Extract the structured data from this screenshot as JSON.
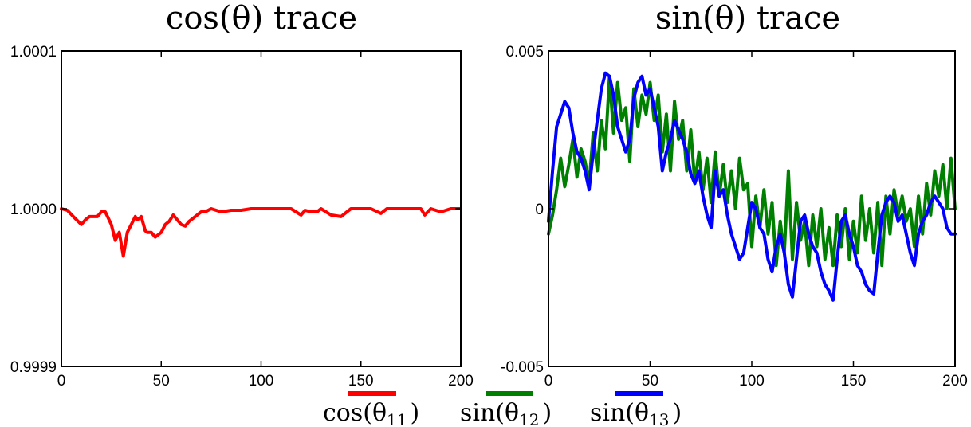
{
  "chart_data": [
    {
      "type": "line",
      "title": "cos(θ) trace",
      "xlabel": "",
      "ylabel": "",
      "xlim": [
        0,
        200
      ],
      "ylim": [
        0.9999,
        1.0001
      ],
      "x_ticks": [
        "0",
        "50",
        "100",
        "150",
        "200"
      ],
      "y_ticks": [
        "0.9999",
        "1.0000",
        "1.0001"
      ],
      "grid": false,
      "series": [
        {
          "name": "cos(θ11)",
          "color": "#ff0000",
          "x": [
            0,
            3,
            6,
            10,
            12,
            14,
            18,
            20,
            22,
            25,
            27,
            29,
            31,
            33,
            35,
            37,
            38,
            40,
            42,
            43,
            45,
            47,
            48,
            50,
            52,
            54,
            56,
            58,
            60,
            62,
            64,
            66,
            68,
            70,
            72,
            75,
            80,
            85,
            90,
            95,
            100,
            110,
            115,
            120,
            122,
            125,
            128,
            130,
            135,
            140,
            145,
            150,
            155,
            160,
            163,
            165,
            168,
            170,
            175,
            180,
            182,
            185,
            190,
            195,
            200
          ],
          "y": [
            1.0,
            0.999999,
            0.999995,
            0.99999,
            0.999993,
            0.999995,
            0.999995,
            0.999998,
            0.999998,
            0.99999,
            0.99998,
            0.999985,
            0.99997,
            0.999985,
            0.99999,
            0.999995,
            0.999993,
            0.999995,
            0.999986,
            0.999985,
            0.999985,
            0.999982,
            0.999983,
            0.999985,
            0.99999,
            0.999992,
            0.999996,
            0.999993,
            0.99999,
            0.999989,
            0.999992,
            0.999994,
            0.999996,
            0.999998,
            0.999998,
            1.0,
            0.999998,
            0.999999,
            0.999999,
            1.0,
            1.0,
            1.0,
            1.0,
            0.999996,
            0.999999,
            0.999998,
            0.999998,
            1.0,
            0.999996,
            0.999995,
            1.0,
            1.0,
            1.0,
            0.999997,
            1.0,
            1.0,
            1.0,
            1.0,
            1.0,
            1.0,
            0.999996,
            1.0,
            0.999998,
            1.0,
            1.0
          ]
        }
      ]
    },
    {
      "type": "line",
      "title": "sin(θ) trace",
      "xlabel": "",
      "ylabel": "",
      "xlim": [
        0,
        200
      ],
      "ylim": [
        -0.005,
        0.005
      ],
      "x_ticks": [
        "0",
        "50",
        "100",
        "150",
        "200"
      ],
      "y_ticks": [
        "-0.005",
        "0",
        "0.005"
      ],
      "grid": false,
      "series": [
        {
          "name": "sin(θ12)",
          "color": "#008000",
          "x": [
            0,
            2,
            4,
            6,
            8,
            10,
            12,
            14,
            16,
            18,
            20,
            22,
            24,
            26,
            28,
            30,
            32,
            34,
            36,
            38,
            40,
            42,
            44,
            46,
            48,
            50,
            52,
            54,
            56,
            58,
            60,
            62,
            64,
            66,
            68,
            70,
            72,
            74,
            76,
            78,
            80,
            82,
            84,
            86,
            88,
            90,
            92,
            94,
            96,
            98,
            100,
            102,
            104,
            106,
            108,
            110,
            112,
            114,
            116,
            118,
            120,
            122,
            124,
            126,
            128,
            130,
            132,
            134,
            136,
            138,
            140,
            142,
            144,
            146,
            148,
            150,
            152,
            154,
            156,
            158,
            160,
            162,
            164,
            166,
            168,
            170,
            172,
            174,
            176,
            178,
            180,
            182,
            184,
            186,
            188,
            190,
            192,
            194,
            196,
            198,
            200
          ],
          "y": [
            -0.0008,
            -0.0002,
            0.0006,
            0.0016,
            0.0007,
            0.0014,
            0.0022,
            0.001,
            0.0019,
            0.0015,
            0.0008,
            0.0024,
            0.0012,
            0.0028,
            0.0019,
            0.0042,
            0.0024,
            0.004,
            0.0028,
            0.0032,
            0.0015,
            0.0038,
            0.0026,
            0.0036,
            0.003,
            0.004,
            0.0028,
            0.0036,
            0.0018,
            0.003,
            0.0012,
            0.0034,
            0.0022,
            0.0028,
            0.0012,
            0.0025,
            0.0008,
            0.0018,
            0.0006,
            0.0016,
            0.0002,
            0.0018,
            0.0004,
            0.0014,
            0.0002,
            0.0012,
            0.0,
            0.0016,
            0.0006,
            0.0008,
            -0.0012,
            0.0004,
            -0.0006,
            0.0006,
            -0.0008,
            0.0002,
            -0.0018,
            -0.0004,
            -0.0014,
            0.0012,
            -0.0016,
            0.0002,
            -0.001,
            -0.0004,
            -0.0018,
            -0.0002,
            -0.0012,
            0.0,
            -0.0016,
            -0.0006,
            -0.0018,
            -0.0002,
            -0.0012,
            0.0,
            -0.0016,
            -0.0004,
            -0.0014,
            0.0004,
            -0.001,
            0.0,
            -0.0014,
            0.0002,
            -0.0018,
            0.0004,
            -0.0008,
            0.0006,
            -0.0002,
            0.0004,
            -0.0004,
            0.0,
            -0.0012,
            0.0004,
            -0.0008,
            0.0008,
            -0.0002,
            0.0012,
            0.0004,
            0.0014,
            0.0,
            0.0016,
            0.0
          ]
        },
        {
          "name": "sin(θ13)",
          "color": "#0000ff",
          "x": [
            0,
            2,
            4,
            6,
            8,
            10,
            12,
            14,
            16,
            18,
            20,
            22,
            24,
            26,
            28,
            30,
            32,
            34,
            36,
            38,
            40,
            42,
            44,
            46,
            48,
            50,
            52,
            54,
            56,
            58,
            60,
            62,
            64,
            66,
            68,
            70,
            72,
            74,
            76,
            78,
            80,
            82,
            84,
            86,
            88,
            90,
            92,
            94,
            96,
            98,
            100,
            102,
            104,
            106,
            108,
            110,
            112,
            114,
            116,
            118,
            120,
            122,
            124,
            126,
            128,
            130,
            132,
            134,
            136,
            138,
            140,
            142,
            144,
            146,
            148,
            150,
            152,
            154,
            156,
            158,
            160,
            162,
            164,
            166,
            168,
            170,
            172,
            174,
            176,
            178,
            180,
            182,
            184,
            186,
            188,
            190,
            192,
            194,
            196,
            198,
            200
          ],
          "y": [
            -0.0004,
            0.0012,
            0.0026,
            0.003,
            0.0034,
            0.0032,
            0.0024,
            0.0018,
            0.0016,
            0.0012,
            0.0006,
            0.0018,
            0.0028,
            0.0038,
            0.0043,
            0.0042,
            0.0036,
            0.0026,
            0.0022,
            0.0018,
            0.0022,
            0.0035,
            0.004,
            0.0042,
            0.0036,
            0.0038,
            0.0032,
            0.0026,
            0.0012,
            0.0018,
            0.0022,
            0.0028,
            0.0025,
            0.0022,
            0.0018,
            0.0011,
            0.0008,
            0.0012,
            0.0004,
            -0.0002,
            -0.0006,
            0.0012,
            0.0004,
            0.0006,
            -0.0002,
            -0.0008,
            -0.0012,
            -0.0016,
            -0.0014,
            -0.0006,
            0.0002,
            0.0,
            -0.0006,
            -0.0008,
            -0.0016,
            -0.002,
            -0.0012,
            -0.0008,
            -0.0014,
            -0.0024,
            -0.0028,
            -0.0016,
            -0.0004,
            -0.0002,
            -0.0008,
            -0.0012,
            -0.0014,
            -0.002,
            -0.0024,
            -0.0026,
            -0.0029,
            -0.0016,
            -0.0004,
            -0.0002,
            -0.0008,
            -0.0012,
            -0.0018,
            -0.002,
            -0.0024,
            -0.0026,
            -0.0027,
            -0.0014,
            -0.0002,
            0.0002,
            0.0004,
            0.0002,
            -0.0004,
            -0.0002,
            -0.0008,
            -0.0014,
            -0.0018,
            -0.0008,
            -0.0004,
            -0.0002,
            0.0002,
            0.0004,
            0.0002,
            0.0,
            -0.0006,
            -0.0008,
            -0.0008
          ]
        }
      ]
    }
  ],
  "legend": {
    "placement": "bottom-center",
    "items": [
      {
        "text": "cos(θ",
        "sub": "11",
        "close": ")",
        "color": "#ff0000"
      },
      {
        "text": "sin(θ",
        "sub": "12",
        "close": ")",
        "color": "#008000"
      },
      {
        "text": "sin(θ",
        "sub": "13",
        "close": ")",
        "color": "#0000ff"
      }
    ]
  }
}
